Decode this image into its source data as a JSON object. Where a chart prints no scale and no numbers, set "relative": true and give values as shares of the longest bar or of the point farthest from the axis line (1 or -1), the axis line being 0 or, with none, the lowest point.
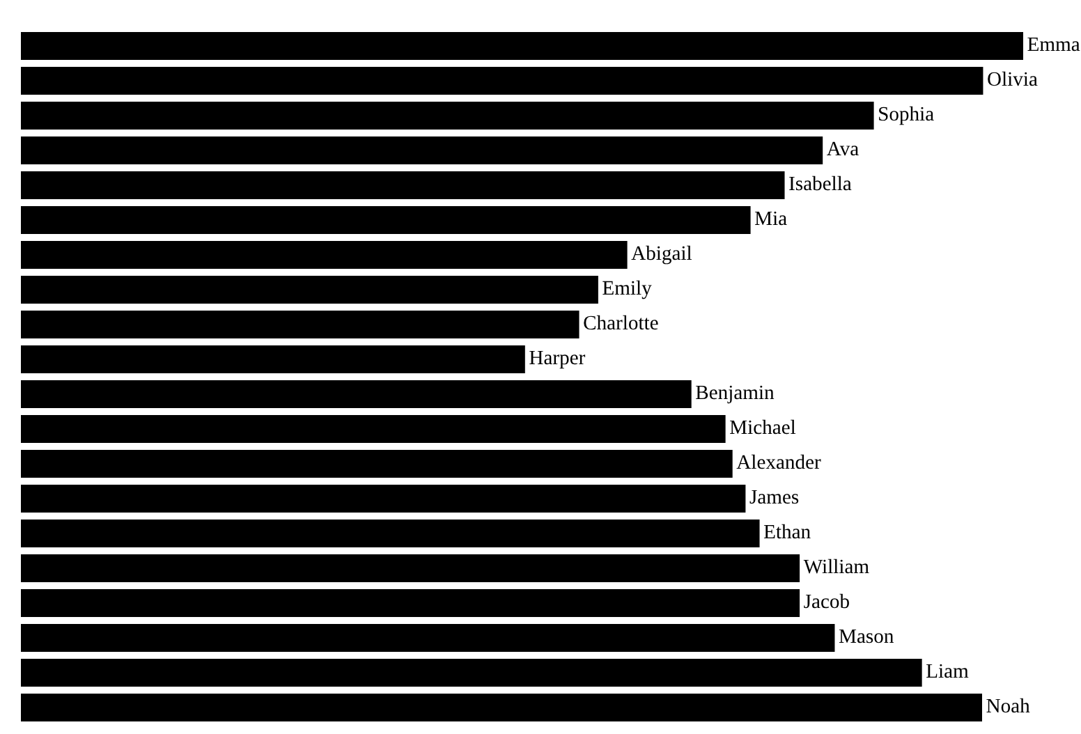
{
  "chart_data": {
    "type": "bar",
    "orientation": "horizontal",
    "relative": true,
    "color": "#000000",
    "categories": [
      "Emma",
      "Olivia",
      "Sophia",
      "Ava",
      "Isabella",
      "Mia",
      "Abigail",
      "Emily",
      "Charlotte",
      "Harper",
      "Benjamin",
      "Michael",
      "Alexander",
      "James",
      "Ethan",
      "William",
      "Jacob",
      "Mason",
      "Liam",
      "Noah"
    ],
    "values": [
      1,
      0.96,
      0.851,
      0.8,
      0.762,
      0.728,
      0.605,
      0.576,
      0.557,
      0.503,
      0.669,
      0.703,
      0.71,
      0.723,
      0.737,
      0.777,
      0.777,
      0.812,
      0.899,
      0.959
    ]
  }
}
